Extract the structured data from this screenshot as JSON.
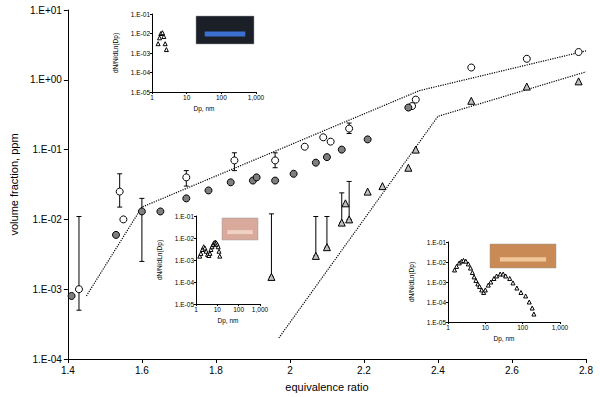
{
  "chart_data": [
    {
      "type": "scatter",
      "xlabel": "equivalence ratio",
      "ylabel": "volume fraction, ppm",
      "log": "y",
      "grid": false,
      "xlim": [
        1.4,
        2.8
      ],
      "xticks": [
        1.4,
        1.6,
        1.8,
        2,
        2.2,
        2.4,
        2.6,
        2.8
      ],
      "ylim": [
        0.0001,
        10
      ],
      "yticks": [
        {
          "value": 0.0001,
          "label": "1.E-04"
        },
        {
          "value": 0.001,
          "label": "1.E-03"
        },
        {
          "value": 0.01,
          "label": "1.E-02"
        },
        {
          "value": 0.1,
          "label": "1.E-01"
        },
        {
          "value": 1,
          "label": "1.E+00"
        },
        {
          "value": 10,
          "label": "1.E+01"
        }
      ],
      "series": [
        {
          "type": "line",
          "line_style": "dotted",
          "color": "#000000",
          "x": [
            1.45,
            1.6,
            2.35,
            2.8
          ],
          "values": [
            0.0008,
            0.015,
            0.7,
            2.6
          ]
        },
        {
          "type": "line",
          "line_style": "dotted",
          "color": "#000000",
          "x": [
            1.97,
            2.4,
            2.8
          ],
          "values": [
            0.0002,
            0.3,
            1.3
          ]
        },
        {
          "type": "scatter",
          "marker": "open_circle",
          "color": "#000000",
          "x": [
            1.43,
            1.54,
            1.55,
            1.72,
            1.85,
            1.96,
            2.04,
            2.09,
            2.11,
            2.16,
            2.33,
            2.34,
            2.49,
            2.64,
            2.78
          ],
          "values": [
            0.001,
            0.025,
            0.01,
            0.04,
            0.07,
            0.07,
            0.11,
            0.15,
            0.13,
            0.2,
            0.42,
            0.52,
            1.5,
            2.0,
            2.5
          ],
          "error_low": [
            0.0005,
            0.015,
            null,
            0.03,
            0.05,
            0.055,
            null,
            null,
            null,
            0.17,
            null,
            null,
            null,
            null,
            null
          ],
          "error_high": [
            0.011,
            0.045,
            null,
            0.05,
            0.09,
            0.09,
            null,
            null,
            null,
            0.24,
            null,
            null,
            null,
            null,
            null
          ]
        },
        {
          "type": "scatter",
          "marker": "filled_circle",
          "color": "#7f7f7f",
          "x": [
            1.41,
            1.53,
            1.6,
            1.65,
            1.72,
            1.78,
            1.84,
            1.9,
            1.91,
            1.96,
            2.01,
            2.07,
            2.1,
            2.14,
            2.21,
            2.32
          ],
          "values": [
            0.0008,
            0.006,
            0.013,
            0.013,
            0.02,
            0.026,
            0.034,
            0.036,
            0.04,
            0.036,
            0.045,
            0.065,
            0.078,
            0.1,
            0.14,
            0.4
          ],
          "error_low": [
            null,
            null,
            0.0025,
            null,
            null,
            null,
            null,
            null,
            null,
            null,
            null,
            null,
            null,
            null,
            null,
            null
          ],
          "error_high": [
            null,
            null,
            0.02,
            null,
            null,
            null,
            null,
            null,
            null,
            null,
            null,
            null,
            null,
            null,
            null,
            null
          ]
        },
        {
          "type": "scatter",
          "marker": "triangle",
          "color": "#bfbfbf",
          "x": [
            1.95,
            2.07,
            2.1,
            2.14,
            2.15,
            2.16,
            2.21,
            2.25,
            2.32,
            2.34,
            2.49,
            2.64,
            2.78
          ],
          "values": [
            0.0015,
            0.003,
            0.004,
            0.009,
            0.017,
            0.01,
            0.025,
            0.03,
            0.055,
            0.1,
            0.5,
            0.8,
            0.95
          ],
          "error_low": [
            0.0015,
            0.003,
            0.004,
            0.009,
            null,
            0.01,
            null,
            null,
            null,
            null,
            null,
            null,
            null
          ],
          "error_high": [
            0.012,
            0.011,
            0.011,
            0.024,
            null,
            0.035,
            null,
            null,
            null,
            null,
            null,
            null,
            null
          ]
        }
      ]
    },
    {
      "type": "scatter",
      "marker": "open_triangle",
      "color": "#000000",
      "xlabel": "Dp, nm",
      "ylabel": "dN/N/dLn(Dp)",
      "log": true,
      "grid": false,
      "xlim": [
        1,
        1000
      ],
      "xticks": [
        1,
        10,
        100,
        {
          "value": 1000,
          "label": "1,000"
        }
      ],
      "ylim": [
        1e-05,
        0.1
      ],
      "yticks": [
        {
          "value": 1e-05,
          "label": "1.E-05"
        },
        {
          "value": 0.0001,
          "label": "1.E-04"
        },
        {
          "value": 0.001,
          "label": "1.E-03"
        },
        {
          "value": 0.01,
          "label": "1.E-02"
        },
        {
          "value": 0.1,
          "label": "1.E-01"
        }
      ],
      "x": [
        1.5,
        1.65,
        1.8,
        2.0,
        2.2,
        2.4,
        2.6
      ],
      "values": [
        0.003,
        0.006,
        0.01,
        0.011,
        0.007,
        0.003,
        0.0015
      ]
    },
    {
      "type": "scatter",
      "marker": "open_triangle",
      "color": "#000000",
      "xlabel": "Dp, nm",
      "ylabel": "dN/N/dLn(Dp)",
      "log": true,
      "grid": false,
      "xlim": [
        1,
        1000
      ],
      "xticks": [
        1,
        10,
        100,
        {
          "value": 1000,
          "label": "1,000"
        }
      ],
      "ylim": [
        1e-05,
        0.1
      ],
      "yticks": [
        {
          "value": 1e-05,
          "label": "1.E-05"
        },
        {
          "value": 0.0001,
          "label": "1.E-04"
        },
        {
          "value": 0.001,
          "label": "1.E-03"
        },
        {
          "value": 0.01,
          "label": "1.E-02"
        },
        {
          "value": 0.1,
          "label": "1.E-01"
        }
      ],
      "x": [
        1.5,
        1.7,
        2,
        2.3,
        2.6,
        3,
        3.5,
        4,
        4.5,
        5,
        5.6,
        6.3,
        7,
        8,
        9,
        10,
        11,
        12,
        13
      ],
      "values": [
        0.0015,
        0.002,
        0.003,
        0.004,
        0.0035,
        0.0025,
        0.0018,
        0.0016,
        0.002,
        0.003,
        0.004,
        0.005,
        0.006,
        0.0065,
        0.006,
        0.005,
        0.004,
        0.0025,
        0.0015
      ]
    },
    {
      "type": "scatter",
      "marker": "open_triangle",
      "color": "#000000",
      "xlabel": "Dp, nm",
      "ylabel": "dN/N/dLn(Dp)",
      "log": true,
      "grid": false,
      "xlim": [
        1,
        1000
      ],
      "xticks": [
        1,
        10,
        100,
        {
          "value": 1000,
          "label": "1,000"
        }
      ],
      "ylim": [
        1e-05,
        0.1
      ],
      "yticks": [
        {
          "value": 1e-05,
          "label": "1.E-05"
        },
        {
          "value": 0.0001,
          "label": "1.E-04"
        },
        {
          "value": 0.001,
          "label": "1.E-03"
        },
        {
          "value": 0.01,
          "label": "1.E-02"
        },
        {
          "value": 0.1,
          "label": "1.E-01"
        }
      ],
      "x": [
        1.5,
        1.7,
        2,
        2.3,
        2.6,
        3,
        3.5,
        4,
        4.5,
        5,
        5.6,
        6.3,
        7,
        8,
        9,
        10,
        12,
        14,
        17,
        20,
        25,
        30,
        35,
        45,
        55,
        70,
        90,
        120,
        150,
        180,
        200
      ],
      "values": [
        0.004,
        0.006,
        0.009,
        0.011,
        0.012,
        0.011,
        0.008,
        0.005,
        0.003,
        0.0018,
        0.0012,
        0.0008,
        0.0006,
        0.0004,
        0.0003,
        0.0004,
        0.0007,
        0.001,
        0.0015,
        0.002,
        0.0025,
        0.0025,
        0.002,
        0.0015,
        0.0009,
        0.0005,
        0.0003,
        0.0002,
        0.0001,
        5e-05,
        2.5e-05
      ]
    }
  ]
}
